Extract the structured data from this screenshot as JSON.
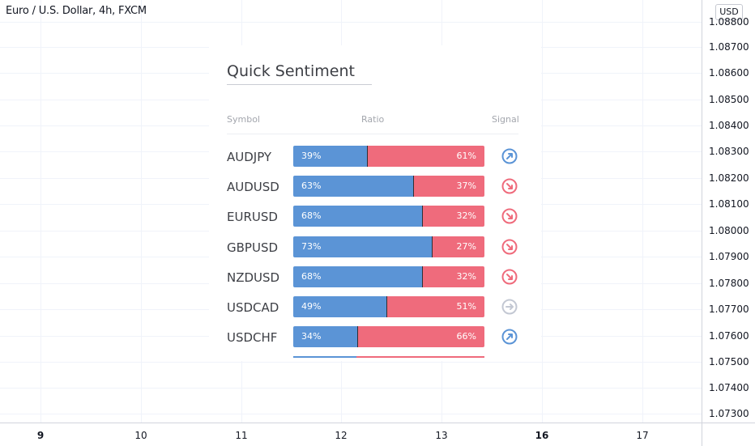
{
  "chart": {
    "title": "Euro / U.S. Dollar, 4h, FXCM",
    "currency": "USD",
    "price_labels": [
      "1.08800",
      "1.08700",
      "1.08600",
      "1.08500",
      "1.08400",
      "1.08300",
      "1.08200",
      "1.08100",
      "1.08000",
      "1.07900",
      "1.07800",
      "1.07700",
      "1.07600",
      "1.07500",
      "1.07400",
      "1.07300"
    ],
    "time_labels": [
      {
        "text": "9",
        "bold": true
      },
      {
        "text": "10",
        "bold": false
      },
      {
        "text": "11",
        "bold": false
      },
      {
        "text": "12",
        "bold": false
      },
      {
        "text": "13",
        "bold": false
      },
      {
        "text": "16",
        "bold": true
      },
      {
        "text": "17",
        "bold": false
      }
    ]
  },
  "panel": {
    "title": "Quick Sentiment",
    "columns": {
      "symbol": "Symbol",
      "ratio": "Ratio",
      "signal": "Signal"
    },
    "rows": [
      {
        "symbol": "AUDJPY",
        "long_pct": 39,
        "long_label": "39%",
        "short_label": "61%",
        "signal": "up-right-arrow-icon",
        "signal_color": "#5b94d6"
      },
      {
        "symbol": "AUDUSD",
        "long_pct": 63,
        "long_label": "63%",
        "short_label": "37%",
        "signal": "down-right-arrow-icon",
        "signal_color": "#ef6b7c"
      },
      {
        "symbol": "EURUSD",
        "long_pct": 68,
        "long_label": "68%",
        "short_label": "32%",
        "signal": "down-right-arrow-icon",
        "signal_color": "#ef6b7c"
      },
      {
        "symbol": "GBPUSD",
        "long_pct": 73,
        "long_label": "73%",
        "short_label": "27%",
        "signal": "down-right-arrow-icon",
        "signal_color": "#ef6b7c"
      },
      {
        "symbol": "NZDUSD",
        "long_pct": 68,
        "long_label": "68%",
        "short_label": "32%",
        "signal": "down-right-arrow-icon",
        "signal_color": "#ef6b7c"
      },
      {
        "symbol": "USDCAD",
        "long_pct": 49,
        "long_label": "49%",
        "short_label": "51%",
        "signal": "right-arrow-icon",
        "signal_color": "#c3c8d3"
      },
      {
        "symbol": "USDCHF",
        "long_pct": 34,
        "long_label": "34%",
        "short_label": "66%",
        "signal": "up-right-arrow-icon",
        "signal_color": "#5b94d6"
      }
    ],
    "partial_long_pct": 33
  },
  "colors": {
    "long": "#5b94d6",
    "short": "#ef6b7c",
    "neutral": "#c3c8d3"
  }
}
